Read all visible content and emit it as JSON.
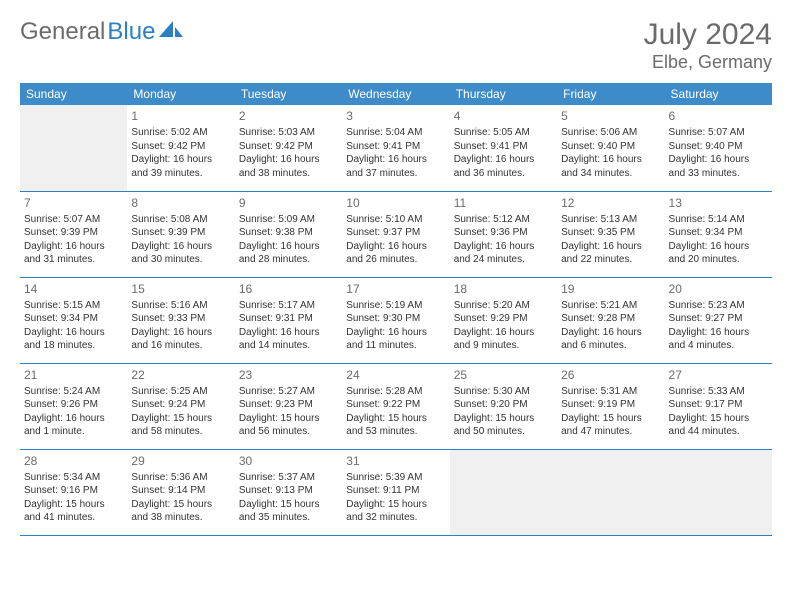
{
  "logo": {
    "part1": "General",
    "part2": "Blue"
  },
  "title": "July 2024",
  "location": "Elbe, Germany",
  "colors": {
    "header_bg": "#3d8bc9",
    "header_text": "#ffffff",
    "row_border": "#2d7fc4",
    "logo_gray": "#6b6b6b",
    "logo_blue": "#2d7fc4",
    "title_color": "#6b6b6b",
    "blank_bg": "#f0f0f0"
  },
  "weekdays": [
    "Sunday",
    "Monday",
    "Tuesday",
    "Wednesday",
    "Thursday",
    "Friday",
    "Saturday"
  ],
  "days": [
    {
      "n": 1,
      "sunrise": "5:02 AM",
      "sunset": "9:42 PM",
      "daylight": "16 hours and 39 minutes."
    },
    {
      "n": 2,
      "sunrise": "5:03 AM",
      "sunset": "9:42 PM",
      "daylight": "16 hours and 38 minutes."
    },
    {
      "n": 3,
      "sunrise": "5:04 AM",
      "sunset": "9:41 PM",
      "daylight": "16 hours and 37 minutes."
    },
    {
      "n": 4,
      "sunrise": "5:05 AM",
      "sunset": "9:41 PM",
      "daylight": "16 hours and 36 minutes."
    },
    {
      "n": 5,
      "sunrise": "5:06 AM",
      "sunset": "9:40 PM",
      "daylight": "16 hours and 34 minutes."
    },
    {
      "n": 6,
      "sunrise": "5:07 AM",
      "sunset": "9:40 PM",
      "daylight": "16 hours and 33 minutes."
    },
    {
      "n": 7,
      "sunrise": "5:07 AM",
      "sunset": "9:39 PM",
      "daylight": "16 hours and 31 minutes."
    },
    {
      "n": 8,
      "sunrise": "5:08 AM",
      "sunset": "9:39 PM",
      "daylight": "16 hours and 30 minutes."
    },
    {
      "n": 9,
      "sunrise": "5:09 AM",
      "sunset": "9:38 PM",
      "daylight": "16 hours and 28 minutes."
    },
    {
      "n": 10,
      "sunrise": "5:10 AM",
      "sunset": "9:37 PM",
      "daylight": "16 hours and 26 minutes."
    },
    {
      "n": 11,
      "sunrise": "5:12 AM",
      "sunset": "9:36 PM",
      "daylight": "16 hours and 24 minutes."
    },
    {
      "n": 12,
      "sunrise": "5:13 AM",
      "sunset": "9:35 PM",
      "daylight": "16 hours and 22 minutes."
    },
    {
      "n": 13,
      "sunrise": "5:14 AM",
      "sunset": "9:34 PM",
      "daylight": "16 hours and 20 minutes."
    },
    {
      "n": 14,
      "sunrise": "5:15 AM",
      "sunset": "9:34 PM",
      "daylight": "16 hours and 18 minutes."
    },
    {
      "n": 15,
      "sunrise": "5:16 AM",
      "sunset": "9:33 PM",
      "daylight": "16 hours and 16 minutes."
    },
    {
      "n": 16,
      "sunrise": "5:17 AM",
      "sunset": "9:31 PM",
      "daylight": "16 hours and 14 minutes."
    },
    {
      "n": 17,
      "sunrise": "5:19 AM",
      "sunset": "9:30 PM",
      "daylight": "16 hours and 11 minutes."
    },
    {
      "n": 18,
      "sunrise": "5:20 AM",
      "sunset": "9:29 PM",
      "daylight": "16 hours and 9 minutes."
    },
    {
      "n": 19,
      "sunrise": "5:21 AM",
      "sunset": "9:28 PM",
      "daylight": "16 hours and 6 minutes."
    },
    {
      "n": 20,
      "sunrise": "5:23 AM",
      "sunset": "9:27 PM",
      "daylight": "16 hours and 4 minutes."
    },
    {
      "n": 21,
      "sunrise": "5:24 AM",
      "sunset": "9:26 PM",
      "daylight": "16 hours and 1 minute."
    },
    {
      "n": 22,
      "sunrise": "5:25 AM",
      "sunset": "9:24 PM",
      "daylight": "15 hours and 58 minutes."
    },
    {
      "n": 23,
      "sunrise": "5:27 AM",
      "sunset": "9:23 PM",
      "daylight": "15 hours and 56 minutes."
    },
    {
      "n": 24,
      "sunrise": "5:28 AM",
      "sunset": "9:22 PM",
      "daylight": "15 hours and 53 minutes."
    },
    {
      "n": 25,
      "sunrise": "5:30 AM",
      "sunset": "9:20 PM",
      "daylight": "15 hours and 50 minutes."
    },
    {
      "n": 26,
      "sunrise": "5:31 AM",
      "sunset": "9:19 PM",
      "daylight": "15 hours and 47 minutes."
    },
    {
      "n": 27,
      "sunrise": "5:33 AM",
      "sunset": "9:17 PM",
      "daylight": "15 hours and 44 minutes."
    },
    {
      "n": 28,
      "sunrise": "5:34 AM",
      "sunset": "9:16 PM",
      "daylight": "15 hours and 41 minutes."
    },
    {
      "n": 29,
      "sunrise": "5:36 AM",
      "sunset": "9:14 PM",
      "daylight": "15 hours and 38 minutes."
    },
    {
      "n": 30,
      "sunrise": "5:37 AM",
      "sunset": "9:13 PM",
      "daylight": "15 hours and 35 minutes."
    },
    {
      "n": 31,
      "sunrise": "5:39 AM",
      "sunset": "9:11 PM",
      "daylight": "15 hours and 32 minutes."
    }
  ],
  "labels": {
    "sunrise": "Sunrise: ",
    "sunset": "Sunset: ",
    "daylight": "Daylight: "
  },
  "layout": {
    "first_weekday_index": 1,
    "num_days": 31,
    "cols": 7
  }
}
